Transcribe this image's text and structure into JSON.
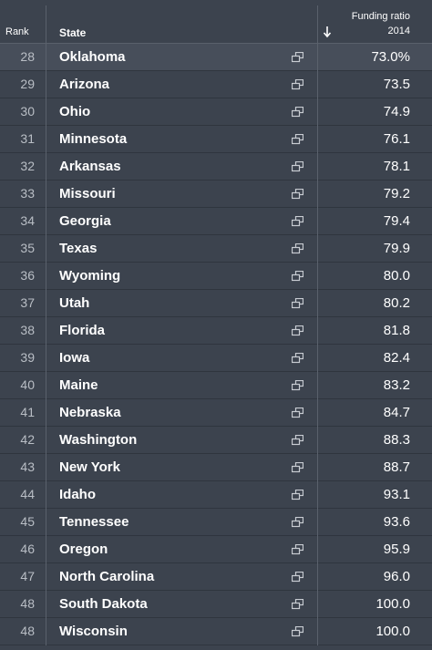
{
  "header": {
    "rank": "Rank",
    "state": "State",
    "funding_ratio": "Funding ratio",
    "year": "2014"
  },
  "table": {
    "rows": [
      [
        "28",
        "Oklahoma",
        "73.0%"
      ],
      [
        "29",
        "Arizona",
        "73.5"
      ],
      [
        "30",
        "Ohio",
        "74.9"
      ],
      [
        "31",
        "Minnesota",
        "76.1"
      ],
      [
        "32",
        "Arkansas",
        "78.1"
      ],
      [
        "33",
        "Missouri",
        "79.2"
      ],
      [
        "34",
        "Georgia",
        "79.4"
      ],
      [
        "35",
        "Texas",
        "79.9"
      ],
      [
        "36",
        "Wyoming",
        "80.0"
      ],
      [
        "37",
        "Utah",
        "80.2"
      ],
      [
        "38",
        "Florida",
        "81.8"
      ],
      [
        "39",
        "Iowa",
        "82.4"
      ],
      [
        "40",
        "Maine",
        "83.2"
      ],
      [
        "41",
        "Nebraska",
        "84.7"
      ],
      [
        "42",
        "Washington",
        "88.3"
      ],
      [
        "43",
        "New York",
        "88.7"
      ],
      [
        "44",
        "Idaho",
        "93.1"
      ],
      [
        "45",
        "Tennessee",
        "93.6"
      ],
      [
        "46",
        "Oregon",
        "95.9"
      ],
      [
        "47",
        "North Carolina",
        "96.0"
      ],
      [
        "48",
        "South Dakota",
        "100.0"
      ],
      [
        "48",
        "Wisconsin",
        "100.0"
      ]
    ]
  }
}
